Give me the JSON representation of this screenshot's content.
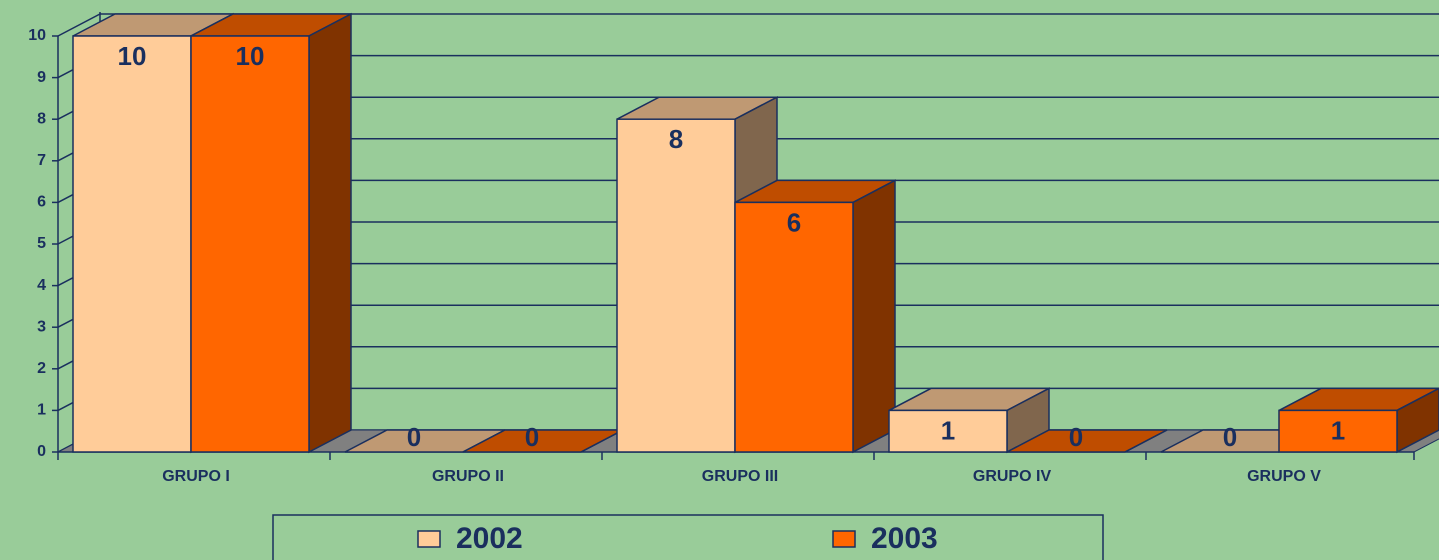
{
  "chart_data": {
    "type": "bar3d",
    "categories": [
      "GRUPO I",
      "GRUPO II",
      "GRUPO III",
      "GRUPO IV",
      "GRUPO V"
    ],
    "series": [
      {
        "name": "2002",
        "color": "#ffcc99",
        "values": [
          10,
          0,
          8,
          1,
          0
        ]
      },
      {
        "name": "2003",
        "color": "#ff6600",
        "values": [
          10,
          0,
          6,
          0,
          1
        ]
      }
    ],
    "ylim": [
      0,
      10
    ],
    "yticks": [
      0,
      1,
      2,
      3,
      4,
      5,
      6,
      7,
      8,
      9,
      10
    ],
    "grid": true,
    "legend": "bottom"
  }
}
